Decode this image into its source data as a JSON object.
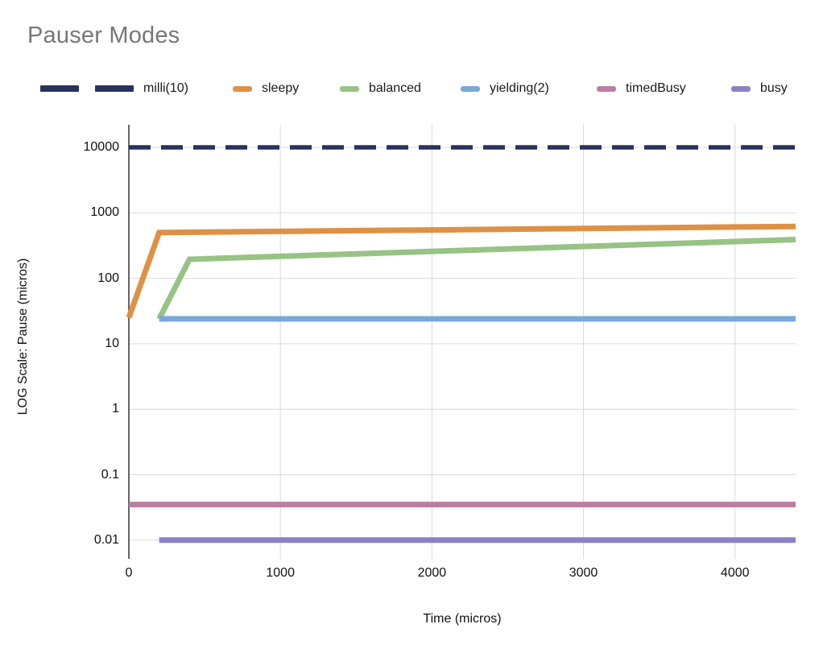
{
  "title": "Pauser Modes",
  "colors": {
    "title": "#777777",
    "gridline": "#d9d9d9",
    "axis": "#333333",
    "tick_text": "#111111"
  },
  "chart_data": {
    "type": "line",
    "title": "Pauser Modes",
    "xlabel": "Time (micros)",
    "ylabel": "LOG Scale: Pause (micros)",
    "grid": true,
    "legend_position": "top",
    "x_axis": {
      "min": 0,
      "max": 4400,
      "ticks": [
        0,
        1000,
        2000,
        3000,
        4000
      ]
    },
    "y_axis": {
      "scale": "log",
      "min": 0.005,
      "max": 22000,
      "ticks": [
        10000,
        1000,
        100,
        10,
        1,
        0.1,
        0.01
      ]
    },
    "series": [
      {
        "name": "milli(10)",
        "color": "#2a315f",
        "dashed": true,
        "stroke_width": 5.5,
        "points": [
          [
            0,
            10000
          ],
          [
            4400,
            10000
          ]
        ]
      },
      {
        "name": "sleepy",
        "color": "#de9145",
        "dashed": false,
        "stroke_width": 7,
        "points": [
          [
            0,
            25
          ],
          [
            200,
            500
          ],
          [
            4400,
            620
          ]
        ]
      },
      {
        "name": "balanced",
        "color": "#97c385",
        "dashed": false,
        "stroke_width": 7,
        "points": [
          [
            200,
            24
          ],
          [
            400,
            195
          ],
          [
            4400,
            390
          ]
        ]
      },
      {
        "name": "yielding(2)",
        "color": "#79a9d9",
        "dashed": false,
        "stroke_width": 7,
        "points": [
          [
            200,
            24
          ],
          [
            4400,
            24
          ]
        ]
      },
      {
        "name": "timedBusy",
        "color": "#bd7da0",
        "dashed": false,
        "stroke_width": 7,
        "points": [
          [
            0,
            0.035
          ],
          [
            4400,
            0.035
          ]
        ]
      },
      {
        "name": "busy",
        "color": "#8d81c6",
        "dashed": false,
        "stroke_width": 7,
        "points": [
          [
            200,
            0.01
          ],
          [
            4400,
            0.01
          ]
        ]
      }
    ]
  }
}
